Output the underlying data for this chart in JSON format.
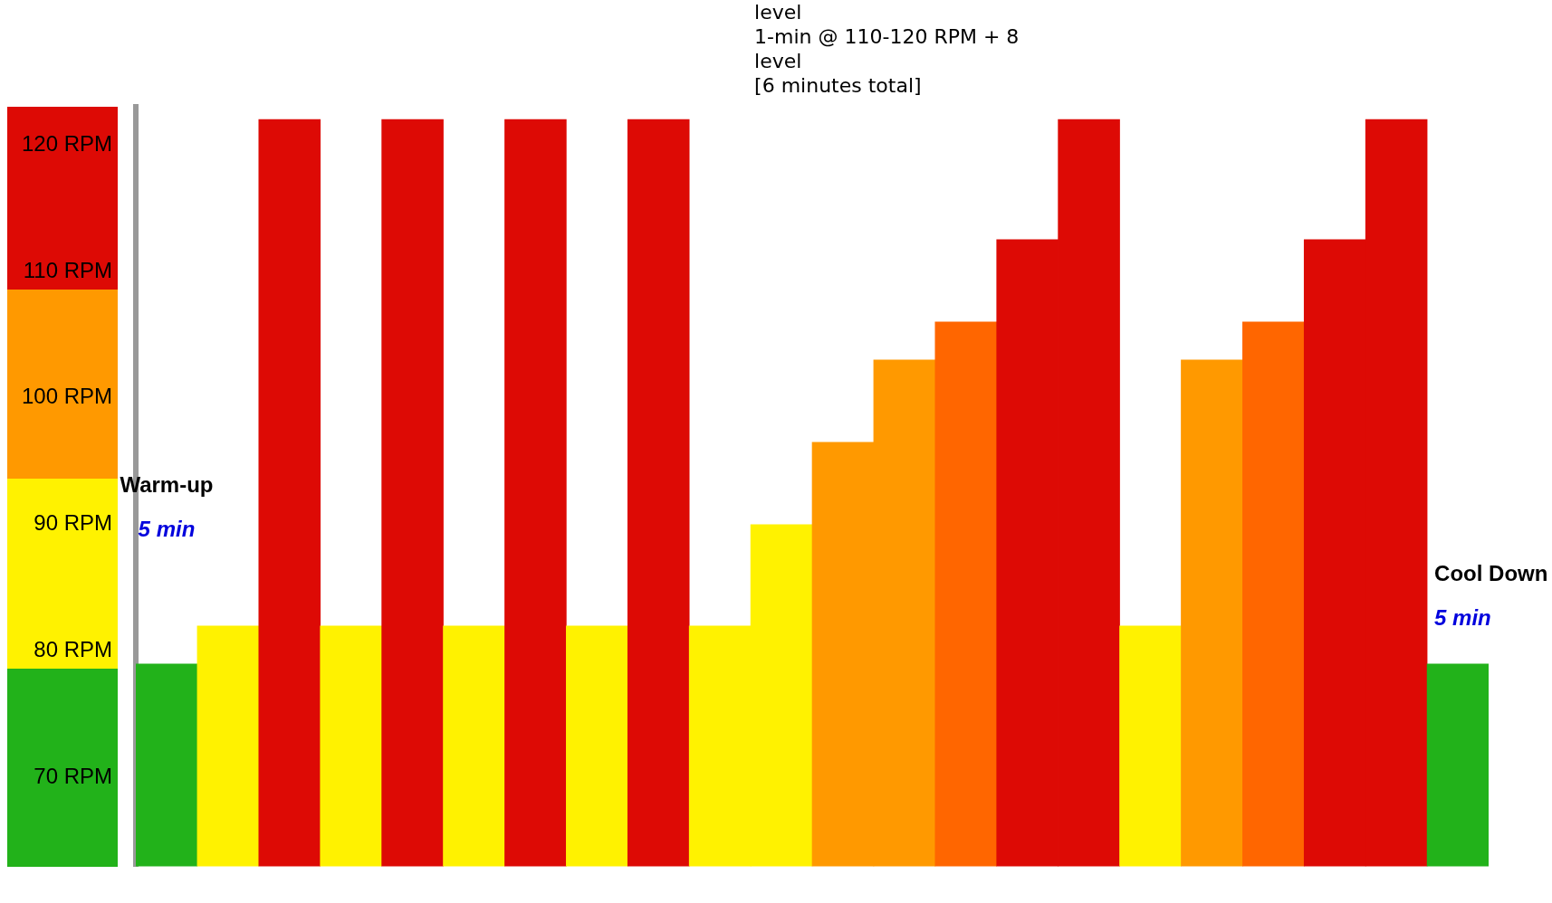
{
  "chart_data": {
    "type": "bar",
    "categories": [
      null,
      null,
      null,
      null,
      null,
      null,
      null,
      null,
      null,
      null,
      null,
      null,
      null,
      null,
      null,
      null,
      null,
      null,
      null,
      null,
      null,
      null
    ],
    "values": [
      79,
      82,
      122,
      82,
      122,
      82,
      122,
      82,
      122,
      82,
      90,
      96.5,
      103,
      106,
      112.5,
      122,
      82,
      103,
      106,
      112.5,
      122,
      79
    ],
    "colors": [
      "#22b21a",
      "#fff200",
      "#dd0a05",
      "#fff200",
      "#dd0a05",
      "#fff200",
      "#dd0a05",
      "#fff200",
      "#dd0a05",
      "#fff200",
      "#fff200",
      "#ff9900",
      "#ff9900",
      "#ff6600",
      "#dd0a05",
      "#dd0a05",
      "#fff200",
      "#ff9900",
      "#ff6600",
      "#dd0a05",
      "#dd0a05",
      "#22b21a"
    ],
    "ylim": [
      63,
      123
    ],
    "yticks": [
      {
        "value": 70,
        "label": "70 RPM"
      },
      {
        "value": 80,
        "label": "80 RPM"
      },
      {
        "value": 90,
        "label": "90 RPM"
      },
      {
        "value": 100,
        "label": "100 RPM"
      },
      {
        "value": 110,
        "label": "110 RPM"
      },
      {
        "value": 120,
        "label": "120 RPM"
      }
    ],
    "annotations": [
      "Warm-up",
      "5 min",
      "Cool Down",
      "5 min",
      "level\n1-min @ 110-120 RPM + 8\nlevel\n[6 minutes total]"
    ],
    "grid": false,
    "legend": false
  }
}
